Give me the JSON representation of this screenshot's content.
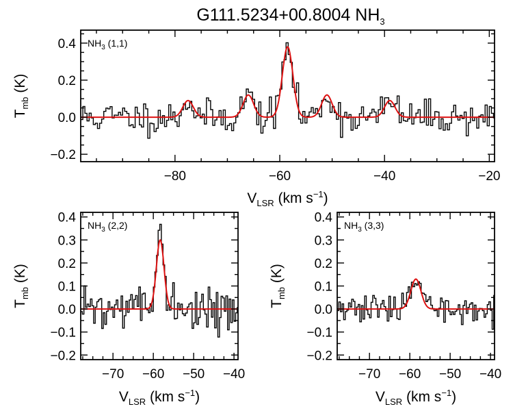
{
  "figure": {
    "title_main": "G111.5234+00.8004 NH",
    "title_sub": "3"
  },
  "colors": {
    "data": "#000000",
    "fit": "#dd1111",
    "axes": "#000000"
  },
  "chart_data": [
    {
      "id": "p11",
      "type": "line",
      "line_label": {
        "main": "NH",
        "sub": "3",
        "rest": " (1,1)"
      },
      "xlabel": {
        "main": "V",
        "sub": "LSR",
        "rest": " (km s",
        "sup": "−1",
        "end": ")"
      },
      "ylabel": {
        "main": "T",
        "sub": "mb",
        "rest": " (K)"
      },
      "xlim": [
        -98,
        -19
      ],
      "ylim": [
        -0.24,
        0.47
      ],
      "xticks": [
        -80,
        -60,
        -40,
        -20
      ],
      "yticks": [
        -0.2,
        0.0,
        0.2,
        0.4
      ],
      "xtick_labels": [
        "−80",
        "−60",
        "−40",
        "−20"
      ],
      "ytick_labels": [
        "−0.2",
        "0.0",
        "0.2",
        "0.4"
      ],
      "noise": 0.045,
      "seed": 11,
      "fit_components": [
        {
          "center": -77.5,
          "amplitude": 0.09,
          "sigma": 1.0
        },
        {
          "center": -66.0,
          "amplitude": 0.12,
          "sigma": 1.0
        },
        {
          "center": -58.5,
          "amplitude": 0.38,
          "sigma": 1.0
        },
        {
          "center": -51.0,
          "amplitude": 0.12,
          "sigma": 1.0
        },
        {
          "center": -39.0,
          "amplitude": 0.09,
          "sigma": 1.0
        }
      ]
    },
    {
      "id": "p22",
      "type": "line",
      "line_label": {
        "main": "NH",
        "sub": "3",
        "rest": " (2,2)"
      },
      "xlabel": {
        "main": "V",
        "sub": "LSR",
        "rest": " (km s",
        "sup": "−1",
        "end": ")"
      },
      "ylabel": {
        "main": "T",
        "sub": "mb",
        "rest": " (K)"
      },
      "xlim": [
        -78,
        -39
      ],
      "ylim": [
        -0.22,
        0.42
      ],
      "xticks": [
        -70,
        -60,
        -50,
        -40
      ],
      "yticks": [
        -0.2,
        -0.1,
        0.0,
        0.1,
        0.2,
        0.3,
        0.4
      ],
      "xtick_labels": [
        "−70",
        "−60",
        "−50",
        "−40"
      ],
      "ytick_labels": [
        "−0.2",
        "−0.1",
        "0.0",
        "0.1",
        "0.2",
        "0.3",
        "0.4"
      ],
      "noise": 0.045,
      "seed": 22,
      "fit_components": [
        {
          "center": -58.3,
          "amplitude": 0.3,
          "sigma": 0.95
        }
      ]
    },
    {
      "id": "p33",
      "type": "line",
      "line_label": {
        "main": "NH",
        "sub": "3",
        "rest": " (3,3)"
      },
      "xlabel": {
        "main": "V",
        "sub": "LSR",
        "rest": " (km s",
        "sup": "−1",
        "end": ")"
      },
      "ylabel": {
        "main": "T",
        "sub": "mb",
        "rest": " (K)"
      },
      "xlim": [
        -78,
        -39
      ],
      "ylim": [
        -0.22,
        0.42
      ],
      "xticks": [
        -70,
        -60,
        -50,
        -40
      ],
      "yticks": [
        -0.2,
        -0.1,
        0.0,
        0.1,
        0.2,
        0.3,
        0.4
      ],
      "xtick_labels": [
        "−70",
        "−60",
        "−50",
        "−40"
      ],
      "ytick_labels": [
        "−0.2",
        "−0.1",
        "0.0",
        "0.1",
        "0.2",
        "0.3",
        "0.4"
      ],
      "noise": 0.03,
      "seed": 33,
      "fit_components": [
        {
          "center": -58.5,
          "amplitude": 0.13,
          "sigma": 1.25
        }
      ]
    }
  ]
}
